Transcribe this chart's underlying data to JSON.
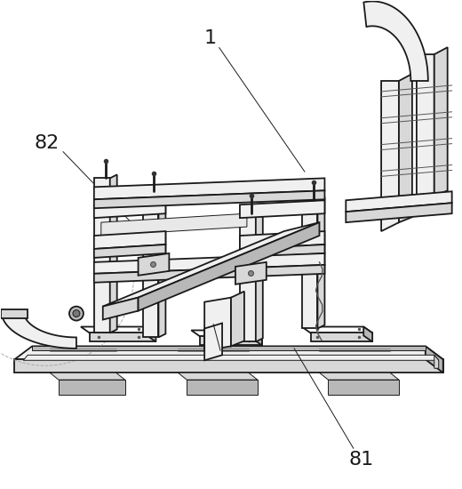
{
  "background_color": "#ffffff",
  "line_color": "#1a1a1a",
  "label_color": "#000000",
  "figsize": [
    5.2,
    5.5
  ],
  "dpi": 100,
  "label_fontsize": 16,
  "lw_main": 1.3,
  "lw_thin": 0.7,
  "fc_light": "#f0f0f0",
  "fc_mid": "#d8d8d8",
  "fc_dark": "#b8b8b8",
  "fc_white": "#ffffff"
}
